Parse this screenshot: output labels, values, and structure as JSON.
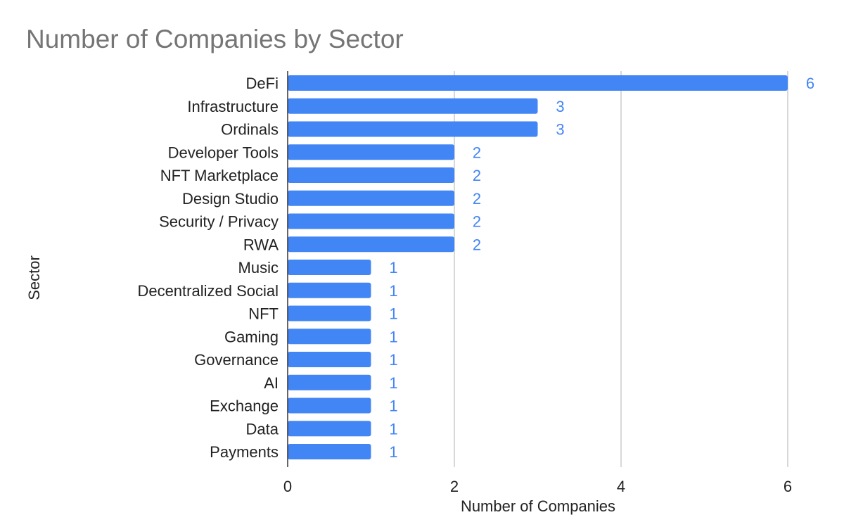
{
  "colors": {
    "bar": "#4285f4",
    "data_label": "#4285f4",
    "gridline": "#cccccc",
    "axis_line": "#333333",
    "title": "#757575"
  },
  "chart_data": {
    "type": "bar",
    "orientation": "horizontal",
    "title": "Number of Companies by Sector",
    "xlabel": "Number of Companies",
    "ylabel": "Sector",
    "xlim": [
      0,
      6
    ],
    "xticks": [
      0,
      2,
      4,
      6
    ],
    "grid": true,
    "legend": "none",
    "categories": [
      "DeFi",
      "Infrastructure",
      "Ordinals",
      "Developer Tools",
      "NFT Marketplace",
      "Design Studio",
      "Security / Privacy",
      "RWA",
      "Music",
      "Decentralized Social",
      "NFT",
      "Gaming",
      "Governance",
      "AI",
      "Exchange",
      "Data",
      "Payments"
    ],
    "values": [
      6,
      3,
      3,
      2,
      2,
      2,
      2,
      2,
      1,
      1,
      1,
      1,
      1,
      1,
      1,
      1,
      1
    ]
  }
}
